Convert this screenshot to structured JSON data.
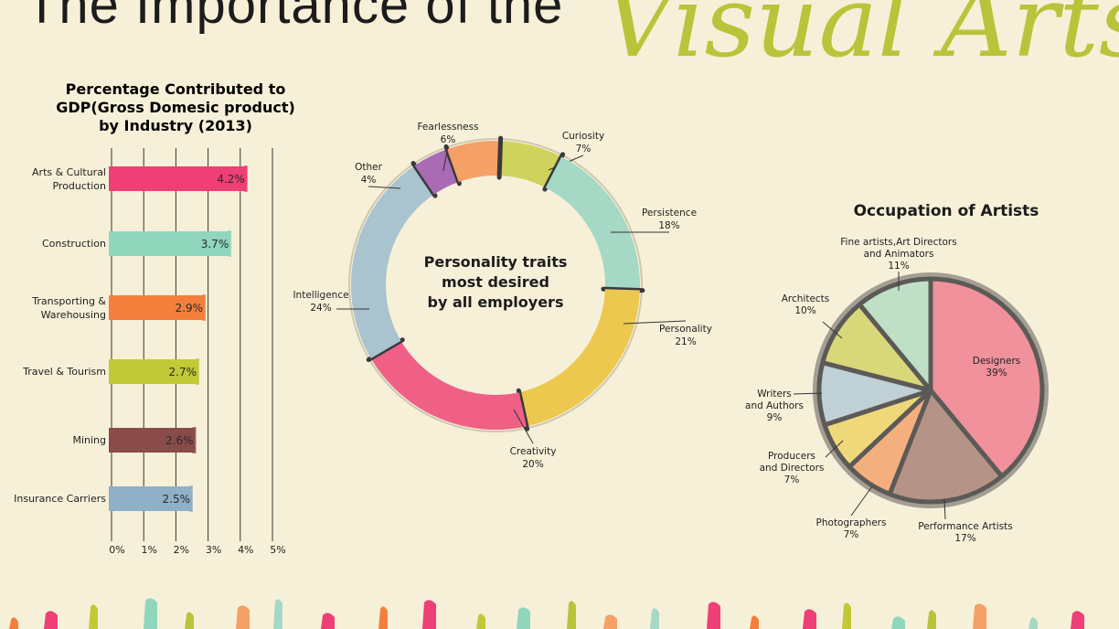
{
  "header": {
    "title_line": "The Importance of the",
    "title_accent": "Visual Arts"
  },
  "chart_data": [
    {
      "type": "bar",
      "orientation": "horizontal",
      "title": [
        "Percentage Contributed to",
        "GDP(Gross Domesic product)",
        "by Industry (2013)"
      ],
      "categories": [
        [
          "Arts & Cultural",
          "Production"
        ],
        [
          "Construction"
        ],
        [
          "Transporting &",
          "Warehousing"
        ],
        [
          "Travel & Tourism"
        ],
        [
          "Mining"
        ],
        [
          "Insurance Carriers"
        ]
      ],
      "values": [
        4.2,
        3.7,
        2.9,
        2.7,
        2.6,
        2.5
      ],
      "value_labels": [
        "4.2%",
        "3.7%",
        "2.9%",
        "2.7%",
        "2.6%",
        "2.5%"
      ],
      "colors": [
        "#ee3f76",
        "#8fd6bd",
        "#f47f3c",
        "#c1c937",
        "#8a4b4b",
        "#8fb0c6"
      ],
      "xlim": [
        0,
        5
      ],
      "ticks": [
        0,
        1,
        2,
        3,
        4,
        5
      ],
      "tick_labels": [
        "0%",
        "1%",
        "2%",
        "3%",
        "4%",
        "5%"
      ],
      "grid": true
    },
    {
      "type": "pie",
      "style": "donut",
      "center_text": [
        "Personality traits",
        "most desired",
        "by all employers"
      ],
      "slices": [
        {
          "label": "Curiosity",
          "value": 7,
          "value_label": "7%",
          "color": "#cfd35e"
        },
        {
          "label": "Persistence",
          "value": 18,
          "value_label": "18%",
          "color": "#a5d8c5"
        },
        {
          "label": "Personality",
          "value": 21,
          "value_label": "21%",
          "color": "#ecc84f"
        },
        {
          "label": "Creativity",
          "value": 20,
          "value_label": "20%",
          "color": "#ef5f86"
        },
        {
          "label": "Intelligence",
          "value": 24,
          "value_label": "24%",
          "color": "#a9c3cf"
        },
        {
          "label": "Other",
          "value": 4,
          "value_label": "4%",
          "color": "#a86bb4"
        },
        {
          "label": "Fearlessness",
          "value": 6,
          "value_label": "6%",
          "color": "#f4a066"
        }
      ]
    },
    {
      "type": "pie",
      "title": "Occupation of Artists",
      "slices": [
        {
          "label": "Designers",
          "value": 39,
          "value_label": "39%",
          "color": "#f1919b"
        },
        {
          "label": "Performance Artists",
          "value": 17,
          "value_label": "17%",
          "color": "#b59386"
        },
        {
          "label": "Photographers",
          "value": 7,
          "value_label": "7%",
          "color": "#f4af7f"
        },
        {
          "label": "Producers and Directors",
          "value": 7,
          "value_label": "7%",
          "color": "#efd879"
        },
        {
          "label": "Writers and Authors",
          "value": 9,
          "value_label": "9%",
          "color": "#bfd1d6"
        },
        {
          "label": "Architects",
          "value": 10,
          "value_label": "10%",
          "color": "#d8d87a"
        },
        {
          "label": "Fine artists,Art Directors and Animators",
          "value": 11,
          "value_label": "11%",
          "color": "#bfe0c7"
        }
      ]
    }
  ],
  "colors": {
    "background": "#f7f0d8",
    "accent": "#b9c43a"
  }
}
